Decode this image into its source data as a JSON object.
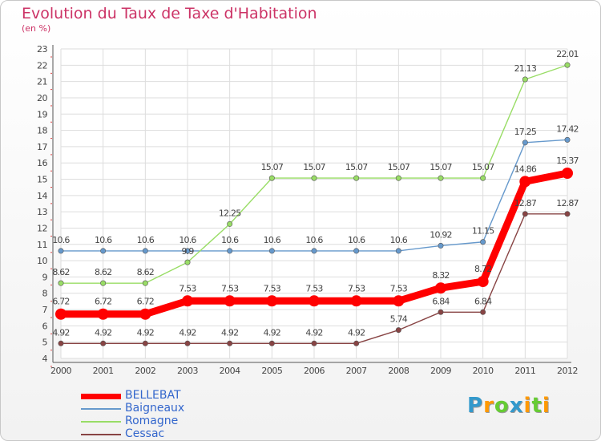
{
  "title": "Evolution du Taux de Taxe d'Habitation",
  "subtitle": "(en %)",
  "logo": {
    "text": "Proxiti",
    "letters": [
      {
        "ch": "P",
        "color": "#3399cc"
      },
      {
        "ch": "r",
        "color": "#ff9900"
      },
      {
        "ch": "o",
        "color": "#66cc33"
      },
      {
        "ch": "x",
        "color": "#3399cc"
      },
      {
        "ch": "i",
        "color": "#ff9900"
      },
      {
        "ch": "t",
        "color": "#66cc33"
      },
      {
        "ch": "i",
        "color": "#ff9900"
      }
    ]
  },
  "chart_data": {
    "type": "line",
    "x": [
      2000,
      2001,
      2002,
      2003,
      2004,
      2005,
      2006,
      2007,
      2008,
      2009,
      2010,
      2011,
      2012
    ],
    "ylim": [
      4,
      23
    ],
    "yticks": [
      4,
      5,
      6,
      7,
      8,
      9,
      10,
      11,
      12,
      13,
      14,
      15,
      16,
      17,
      18,
      19,
      20,
      21,
      22,
      23
    ],
    "xlabel": "",
    "ylabel": "",
    "grid": true,
    "legend_position": "bottom-left",
    "series": [
      {
        "name": "BELLEBAT",
        "color": "#ff0000",
        "values": [
          6.72,
          6.72,
          6.72,
          7.53,
          7.53,
          7.53,
          7.53,
          7.53,
          7.53,
          8.32,
          8.72,
          14.86,
          15.37
        ],
        "labels": [
          "6.72",
          "6.72",
          "6.72",
          "7.53",
          "7.53",
          "7.53",
          "7.53",
          "7.53",
          "7.53",
          "8.32",
          "8.72",
          "14.86",
          "15.37"
        ]
      },
      {
        "name": "Baigneaux",
        "color": "#6699cc",
        "values": [
          10.6,
          10.6,
          10.6,
          10.6,
          10.6,
          10.6,
          10.6,
          10.6,
          10.6,
          10.92,
          11.15,
          17.25,
          17.42
        ],
        "labels": [
          "10.6",
          "10.6",
          "10.6",
          "10.6",
          "10.6",
          "10.6",
          "10.6",
          "10.6",
          "10.6",
          "10.92",
          "11.15",
          "17.25",
          "17.42"
        ]
      },
      {
        "name": "Romagne",
        "color": "#99dd66",
        "values": [
          8.62,
          8.62,
          8.62,
          9.9,
          12.25,
          15.07,
          15.07,
          15.07,
          15.07,
          15.07,
          15.07,
          21.13,
          22.01
        ],
        "labels": [
          "8.62",
          "8.62",
          "8.62",
          "9.9",
          "12.25",
          "15.07",
          "15.07",
          "15.07",
          "15.07",
          "15.07",
          "15.07",
          "21.13",
          "22.01"
        ]
      },
      {
        "name": "Cessac",
        "color": "#884444",
        "values": [
          4.92,
          4.92,
          4.92,
          4.92,
          4.92,
          4.92,
          4.92,
          4.92,
          5.74,
          6.84,
          6.84,
          12.87,
          12.87
        ],
        "labels": [
          "4.92",
          "4.92",
          "4.92",
          "4.92",
          "4.92",
          "4.92",
          "4.92",
          "4.92",
          "5.74",
          "6.84",
          "6.84",
          "12.87",
          "12.87"
        ]
      }
    ]
  }
}
